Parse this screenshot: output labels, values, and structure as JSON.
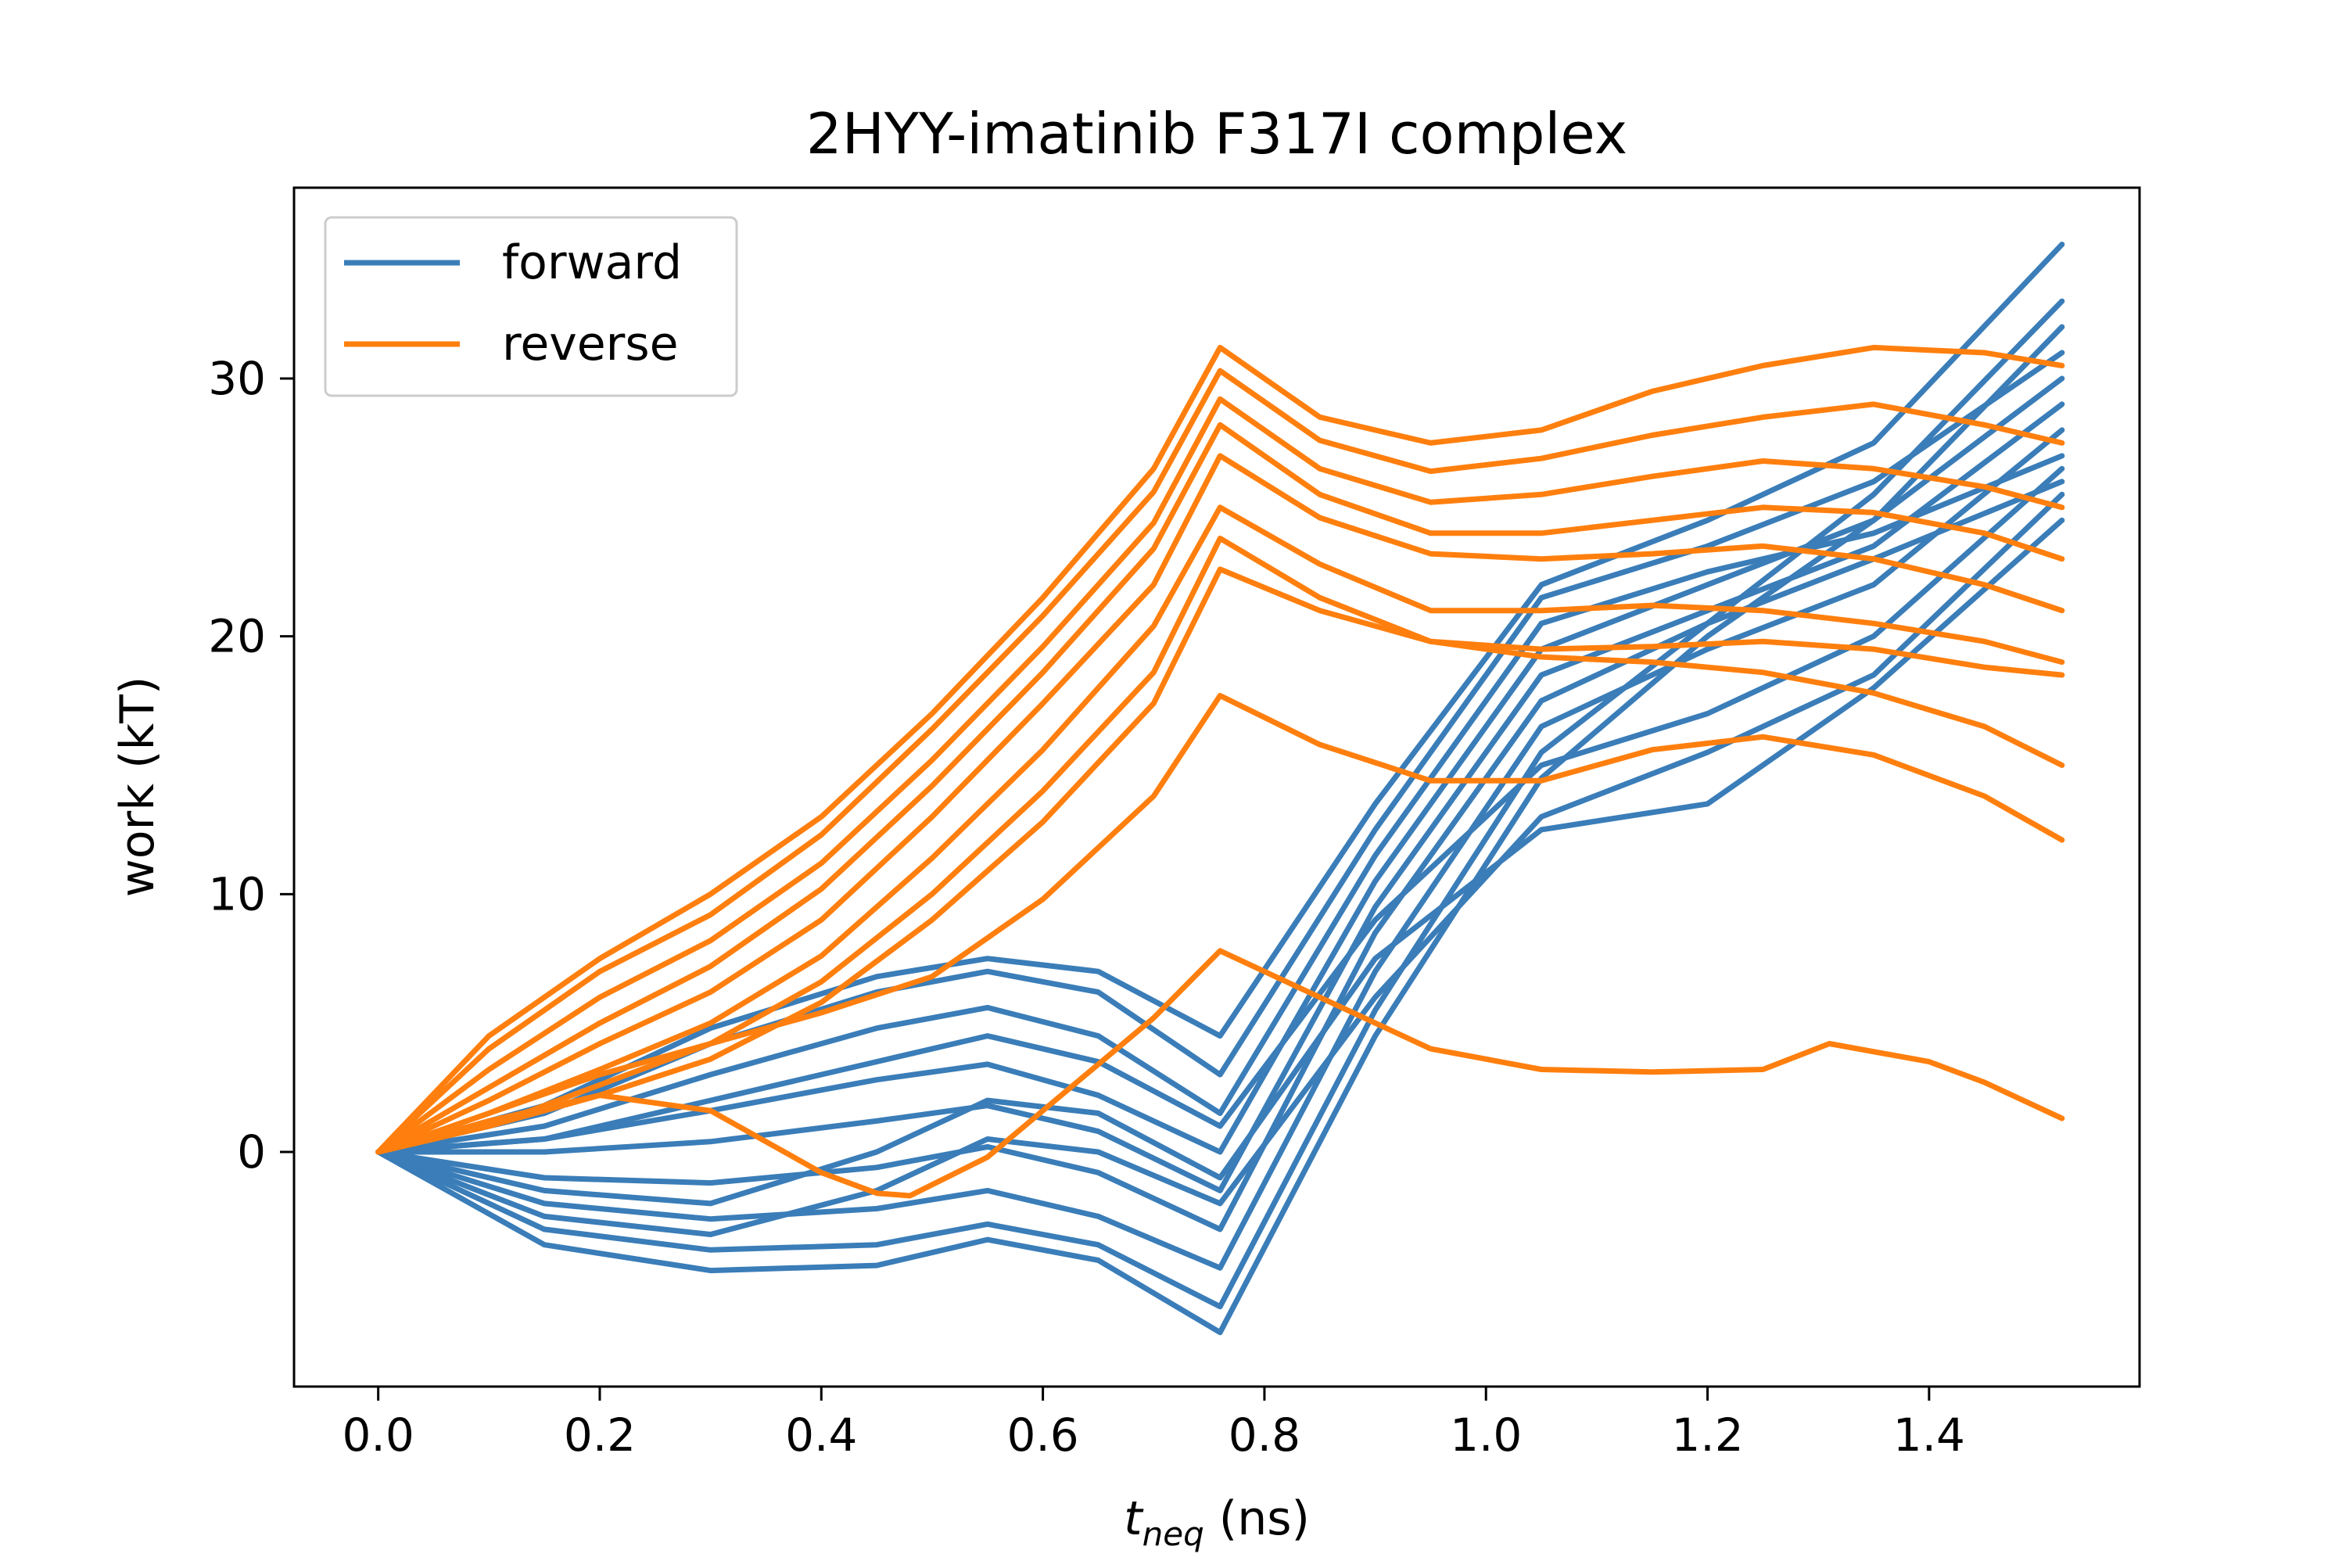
{
  "chart_data": {
    "type": "line",
    "title": "2HYY-imatinib F317I complex",
    "xlabel": "t",
    "xlabel_sub": "neq",
    "xlabel_unit": " (ns)",
    "ylabel": "work (kT)",
    "xlim": [
      -0.076,
      1.59
    ],
    "ylim": [
      -9.1,
      37.4
    ],
    "xticks": [
      0.0,
      0.2,
      0.4,
      0.6,
      0.8,
      1.0,
      1.2,
      1.4
    ],
    "xtick_labels": [
      "0.0",
      "0.2",
      "0.4",
      "0.6",
      "0.8",
      "1.0",
      "1.2",
      "1.4"
    ],
    "yticks": [
      0,
      10,
      20,
      30
    ],
    "ytick_labels": [
      "0",
      "10",
      "20",
      "30"
    ],
    "grid": false,
    "legend_position": "top-left",
    "series": [
      {
        "name": "forward",
        "color": "#3a7db8",
        "traces": [
          {
            "x": [
              0,
              0.15,
              0.3,
              0.45,
              0.55,
              0.65,
              0.76,
              0.9,
              1.05,
              1.2,
              1.35,
              1.52
            ],
            "y": [
              0,
              -3.6,
              -4.6,
              -4.4,
              -3.4,
              -4.2,
              -7.0,
              4.5,
              14.5,
              20.0,
              24.5,
              32.0
            ]
          },
          {
            "x": [
              0,
              0.15,
              0.3,
              0.45,
              0.55,
              0.65,
              0.76,
              0.9,
              1.05,
              1.2,
              1.35,
              1.52
            ],
            "y": [
              0,
              -3.0,
              -3.8,
              -3.6,
              -2.8,
              -3.6,
              -6.0,
              5.5,
              15.5,
              20.5,
              25.5,
              33.0
            ]
          },
          {
            "x": [
              0,
              0.15,
              0.3,
              0.45,
              0.55,
              0.65,
              0.76,
              0.9,
              1.05,
              1.2,
              1.35,
              1.52
            ],
            "y": [
              0,
              -2.0,
              -2.6,
              -2.2,
              -1.5,
              -2.5,
              -4.5,
              7.0,
              16.5,
              19.5,
              22.0,
              28.0
            ]
          },
          {
            "x": [
              0,
              0.15,
              0.3,
              0.45,
              0.55,
              0.65,
              0.76,
              0.9,
              1.05,
              1.2,
              1.35,
              1.52
            ],
            "y": [
              0,
              -1.0,
              -1.2,
              -0.6,
              0.2,
              -0.8,
              -3.0,
              8.5,
              17.5,
              20.5,
              23.0,
              26.0
            ]
          },
          {
            "x": [
              0,
              0.15,
              0.3,
              0.45,
              0.55,
              0.65,
              0.76,
              0.9,
              1.05,
              1.2,
              1.35,
              1.52
            ],
            "y": [
              0,
              0.0,
              0.4,
              1.2,
              1.8,
              0.8,
              -1.5,
              9.5,
              18.5,
              21.0,
              23.5,
              29.0
            ]
          },
          {
            "x": [
              0,
              0.15,
              0.3,
              0.45,
              0.55,
              0.65,
              0.76,
              0.9,
              1.05,
              1.2,
              1.35,
              1.52
            ],
            "y": [
              0,
              0.5,
              1.6,
              2.8,
              3.4,
              2.2,
              0.0,
              10.5,
              19.5,
              22.0,
              24.5,
              30.0
            ]
          },
          {
            "x": [
              0,
              0.15,
              0.3,
              0.45,
              0.55,
              0.65,
              0.76,
              0.9,
              1.05,
              1.2,
              1.35,
              1.52
            ],
            "y": [
              0,
              1.0,
              3.0,
              4.8,
              5.6,
              4.5,
              1.5,
              11.5,
              20.5,
              22.5,
              24.0,
              27.0
            ]
          },
          {
            "x": [
              0,
              0.15,
              0.3,
              0.45,
              0.55,
              0.65,
              0.76,
              0.9,
              1.05,
              1.2,
              1.35,
              1.52
            ],
            "y": [
              0,
              1.5,
              4.2,
              6.2,
              7.0,
              6.2,
              3.0,
              12.5,
              21.5,
              23.5,
              26.0,
              31.0
            ]
          },
          {
            "x": [
              0,
              0.15,
              0.3,
              0.45,
              0.55,
              0.65,
              0.76,
              0.9,
              1.05,
              1.2,
              1.35,
              1.52
            ],
            "y": [
              0,
              1.8,
              4.8,
              6.8,
              7.5,
              7.0,
              4.5,
              13.5,
              22.0,
              24.5,
              27.5,
              35.2
            ]
          },
          {
            "x": [
              0,
              0.15,
              0.3,
              0.45,
              0.55,
              0.65,
              0.76,
              0.9,
              1.05,
              1.2,
              1.35,
              1.52
            ],
            "y": [
              0,
              -2.5,
              -3.2,
              -1.5,
              0.5,
              0.0,
              -2.0,
              6.0,
              13.0,
              15.5,
              18.5,
              25.5
            ]
          },
          {
            "x": [
              0,
              0.15,
              0.3,
              0.45,
              0.55,
              0.65,
              0.76,
              0.9,
              1.05,
              1.2,
              1.35,
              1.52
            ],
            "y": [
              0,
              -1.5,
              -2.0,
              0.0,
              2.0,
              1.5,
              -1.0,
              7.5,
              12.5,
              13.5,
              18.0,
              24.5
            ]
          },
          {
            "x": [
              0,
              0.15,
              0.3,
              0.45,
              0.55,
              0.65,
              0.76,
              0.9,
              1.05,
              1.2,
              1.35,
              1.52
            ],
            "y": [
              0,
              0.5,
              2.0,
              3.5,
              4.5,
              3.5,
              1.0,
              9.0,
              15.0,
              17.0,
              20.0,
              26.5
            ]
          }
        ]
      },
      {
        "name": "reverse",
        "color": "#ff7f0e",
        "traces": [
          {
            "x": [
              0,
              0.1,
              0.2,
              0.3,
              0.4,
              0.5,
              0.6,
              0.7,
              0.76,
              0.85,
              0.95,
              1.05,
              1.15,
              1.25,
              1.35,
              1.45,
              1.52
            ],
            "y": [
              0,
              4.5,
              7.5,
              10.0,
              13.0,
              17.0,
              21.5,
              26.5,
              31.2,
              28.5,
              27.5,
              28.0,
              29.5,
              30.5,
              31.2,
              31.0,
              30.5
            ]
          },
          {
            "x": [
              0,
              0.1,
              0.2,
              0.3,
              0.4,
              0.5,
              0.6,
              0.7,
              0.76,
              0.85,
              0.95,
              1.05,
              1.15,
              1.25,
              1.35,
              1.45,
              1.52
            ],
            "y": [
              0,
              4.0,
              7.0,
              9.2,
              12.3,
              16.4,
              20.8,
              25.6,
              30.3,
              27.6,
              26.4,
              26.9,
              27.8,
              28.5,
              29.0,
              28.2,
              27.5
            ]
          },
          {
            "x": [
              0,
              0.1,
              0.2,
              0.3,
              0.4,
              0.5,
              0.6,
              0.7,
              0.76,
              0.85,
              0.95,
              1.05,
              1.15,
              1.25,
              1.35,
              1.45,
              1.52
            ],
            "y": [
              0,
              3.2,
              6.0,
              8.2,
              11.2,
              15.2,
              19.6,
              24.4,
              29.2,
              26.5,
              25.2,
              25.5,
              26.2,
              26.8,
              26.5,
              25.8,
              25.0
            ]
          },
          {
            "x": [
              0,
              0.1,
              0.2,
              0.3,
              0.4,
              0.5,
              0.6,
              0.7,
              0.76,
              0.85,
              0.95,
              1.05,
              1.15,
              1.25,
              1.35,
              1.45,
              1.52
            ],
            "y": [
              0,
              2.5,
              5.0,
              7.2,
              10.2,
              14.2,
              18.6,
              23.4,
              28.2,
              25.5,
              24.0,
              24.0,
              24.5,
              25.0,
              24.8,
              24.0,
              23.0
            ]
          },
          {
            "x": [
              0,
              0.1,
              0.2,
              0.3,
              0.4,
              0.5,
              0.6,
              0.7,
              0.76,
              0.85,
              0.95,
              1.05,
              1.15,
              1.25,
              1.35,
              1.45,
              1.52
            ],
            "y": [
              0,
              2.0,
              4.2,
              6.2,
              9.0,
              13.0,
              17.4,
              22.0,
              27.0,
              24.6,
              23.2,
              23.0,
              23.2,
              23.5,
              23.0,
              22.0,
              21.0
            ]
          },
          {
            "x": [
              0,
              0.1,
              0.2,
              0.3,
              0.4,
              0.5,
              0.6,
              0.7,
              0.76,
              0.85,
              0.95,
              1.05,
              1.15,
              1.25,
              1.35,
              1.45,
              1.52
            ],
            "y": [
              0,
              1.5,
              3.2,
              5.0,
              7.6,
              11.4,
              15.6,
              20.4,
              25.0,
              22.8,
              21.0,
              21.0,
              21.2,
              21.0,
              20.5,
              19.8,
              19.0
            ]
          },
          {
            "x": [
              0,
              0.1,
              0.2,
              0.3,
              0.4,
              0.5,
              0.6,
              0.7,
              0.76,
              0.85,
              0.95,
              1.05,
              1.15,
              1.25,
              1.35,
              1.45,
              1.52
            ],
            "y": [
              0,
              1.0,
              2.6,
              4.2,
              6.6,
              10.0,
              14.0,
              18.6,
              23.8,
              21.5,
              19.8,
              19.5,
              19.6,
              19.8,
              19.5,
              18.8,
              18.5
            ]
          },
          {
            "x": [
              0,
              0.1,
              0.2,
              0.3,
              0.4,
              0.5,
              0.6,
              0.7,
              0.76,
              0.85,
              0.95,
              1.05,
              1.15,
              1.25,
              1.35,
              1.45,
              1.52
            ],
            "y": [
              0,
              1.0,
              2.2,
              3.6,
              5.8,
              9.0,
              12.8,
              17.4,
              22.6,
              21.0,
              19.8,
              19.2,
              19.0,
              18.6,
              17.8,
              16.5,
              15.0
            ]
          },
          {
            "x": [
              0,
              0.1,
              0.2,
              0.3,
              0.4,
              0.5,
              0.6,
              0.7,
              0.76,
              0.85,
              0.95,
              1.05,
              1.15,
              1.25,
              1.35,
              1.45,
              1.52
            ],
            "y": [
              0,
              1.5,
              3.0,
              4.2,
              5.4,
              6.8,
              9.8,
              13.8,
              17.7,
              15.8,
              14.4,
              14.4,
              15.6,
              16.1,
              15.4,
              13.8,
              12.1
            ]
          },
          {
            "x": [
              0,
              0.1,
              0.2,
              0.3,
              0.4,
              0.45,
              0.48,
              0.55,
              0.6,
              0.7,
              0.76,
              0.85,
              0.95,
              1.05,
              1.15,
              1.25,
              1.31,
              1.4,
              1.45,
              1.52
            ],
            "y": [
              0,
              1.2,
              2.2,
              1.6,
              -0.8,
              -1.6,
              -1.7,
              -0.2,
              1.6,
              5.2,
              7.8,
              6.0,
              4.0,
              3.2,
              3.1,
              3.2,
              4.2,
              3.5,
              2.7,
              1.3
            ]
          }
        ]
      }
    ]
  }
}
